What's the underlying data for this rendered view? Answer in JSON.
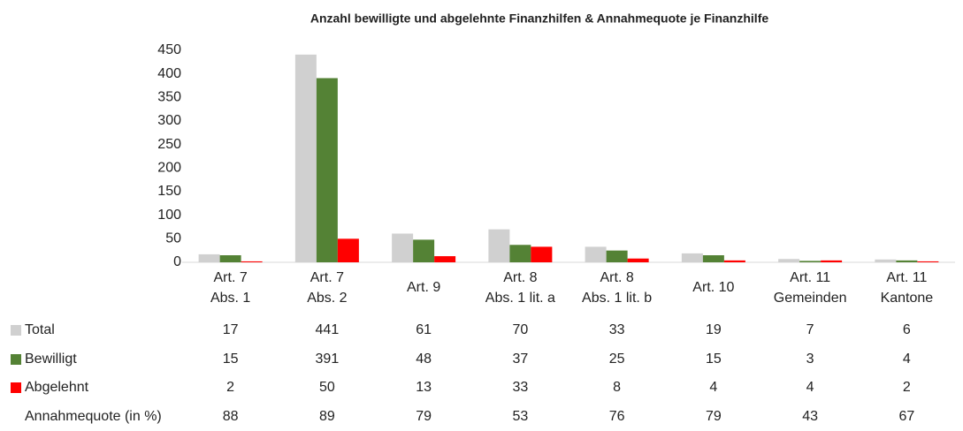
{
  "chart_data": {
    "type": "bar",
    "title": "Anzahl bewilligte und abgelehnte Finanzhilfen & Annahmequote je Finanzhilfe",
    "categories": [
      "Art. 7\nAbs. 1",
      "Art. 7\nAbs. 2",
      "Art. 9",
      "Art. 8\nAbs. 1 lit. a",
      "Art. 8\nAbs. 1 lit. b",
      "Art. 10",
      "Art. 11\nGemeinden",
      "Art. 11\nKantone"
    ],
    "series": [
      {
        "name": "Total",
        "color": "#d0d0d0",
        "values": [
          17,
          441,
          61,
          70,
          33,
          19,
          7,
          6
        ]
      },
      {
        "name": "Bewilligt",
        "color": "#548235",
        "values": [
          15,
          391,
          48,
          37,
          25,
          15,
          3,
          4
        ]
      },
      {
        "name": "Abgelehnt",
        "color": "#ff0000",
        "values": [
          2,
          50,
          13,
          33,
          8,
          4,
          4,
          2
        ]
      }
    ],
    "quota": {
      "name": "Annahmequote (in %)",
      "values": [
        88,
        89,
        79,
        53,
        76,
        79,
        43,
        67
      ]
    },
    "ylim": [
      0,
      450
    ],
    "yticks": [
      0,
      50,
      100,
      150,
      200,
      250,
      300,
      350,
      400,
      450
    ],
    "grid": false
  }
}
